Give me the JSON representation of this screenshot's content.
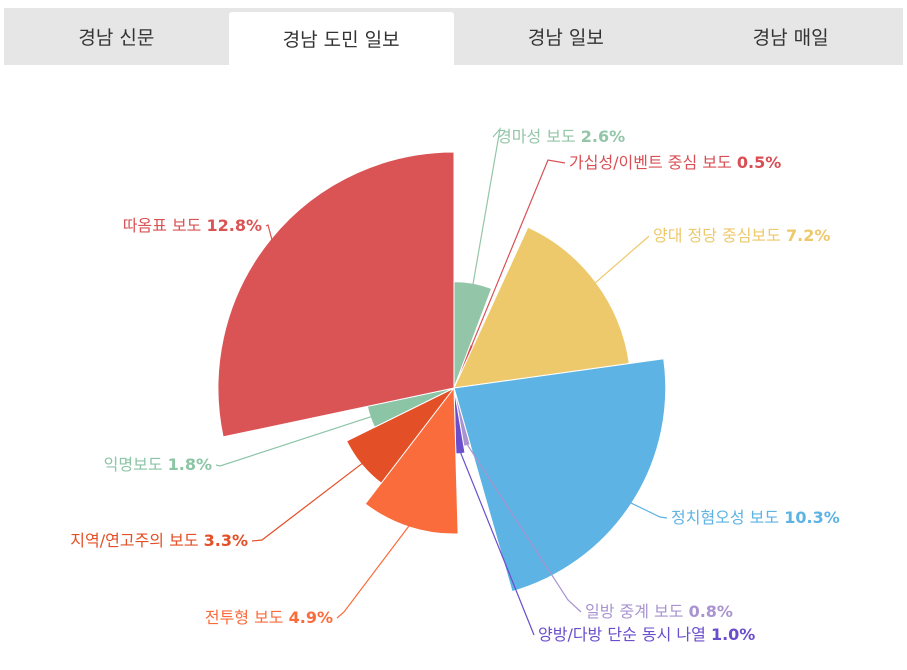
{
  "tabs": [
    {
      "label": "경남 신문",
      "active": false
    },
    {
      "label": "경남 도민 일보",
      "active": true
    },
    {
      "label": "경남 일보",
      "active": false
    },
    {
      "label": "경남 매일",
      "active": false
    }
  ],
  "chart_data": {
    "type": "pie",
    "variant": "variable-radius",
    "slices": [
      {
        "name": "경마성 보도",
        "value": "2.6%",
        "num": 2.6,
        "color": "#93c5a8"
      },
      {
        "name": "가십성/이벤트 중심 보도",
        "value": "0.5%",
        "num": 0.5,
        "color": "#d94f55"
      },
      {
        "name": "양대 정당 중심보도",
        "value": "7.2%",
        "num": 7.2,
        "color": "#eec96b"
      },
      {
        "name": "정치혐오성 보도",
        "value": "10.3%",
        "num": 10.3,
        "color": "#5db3e3"
      },
      {
        "name": "일방 중계 보도",
        "value": "0.8%",
        "num": 0.8,
        "color": "#a994cf"
      },
      {
        "name": "양방/다방 단순 동시 나열",
        "value": "1.0%",
        "num": 1.0,
        "color": "#6a4ecb"
      },
      {
        "name": "전투형 보도",
        "value": "4.9%",
        "num": 4.9,
        "color": "#fb6c3c"
      },
      {
        "name": "지역/연고주의 보도",
        "value": "3.3%",
        "num": 3.3,
        "color": "#e34f26"
      },
      {
        "name": "익명보도",
        "value": "1.8%",
        "num": 1.8,
        "color": "#8cc4a6"
      },
      {
        "name": "따옴표 보도",
        "value": "12.8%",
        "num": 12.8,
        "color": "#da5355"
      }
    ]
  }
}
